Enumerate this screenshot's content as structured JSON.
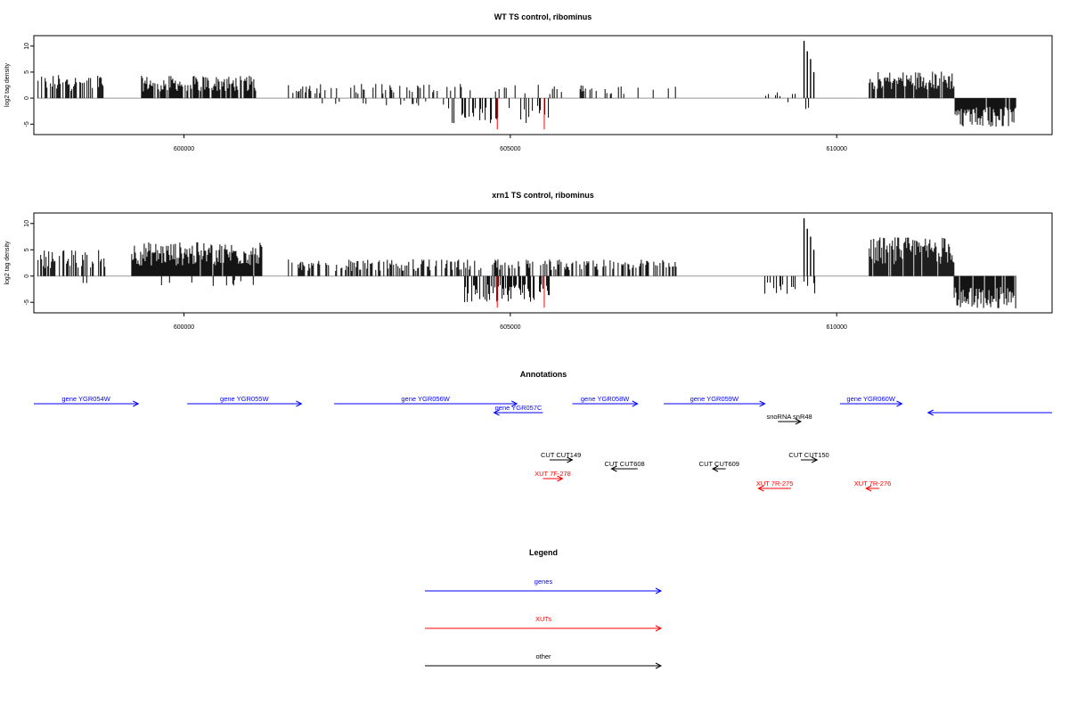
{
  "chart_data": [
    {
      "type": "bar",
      "title": "WT TS control, ribominus",
      "ylabel": "log2 tag density",
      "xlim": [
        597700,
        613300
      ],
      "ylim": [
        -7,
        12
      ],
      "x_ticks": [
        "600000",
        "605000",
        "610000"
      ],
      "y_ticks": [
        "-5",
        "0",
        "5",
        "10"
      ],
      "series": [
        {
          "strand": "plus",
          "color": "#000000",
          "segments": [
            {
              "x": [
                597750,
                598800
              ],
              "amp": 4.5,
              "density": 0.55
            },
            {
              "x": [
                599350,
                601100
              ],
              "amp": 4.3,
              "density": 0.8
            },
            {
              "x": [
                601600,
                604400
              ],
              "amp": 2.8,
              "density": 0.25
            },
            {
              "x": [
                604500,
                607600
              ],
              "amp": 2.6,
              "density": 0.12
            },
            {
              "x": [
                608900,
                609500
              ],
              "amp": 1.2,
              "density": 0.12
            },
            {
              "x": [
                610500,
                611800
              ],
              "amp": 5.2,
              "density": 0.9
            }
          ],
          "peaks": [
            [
              609500,
              11
            ],
            [
              609550,
              9
            ],
            [
              609600,
              7.5
            ],
            [
              609650,
              5
            ]
          ]
        },
        {
          "strand": "minus",
          "color": "#000000",
          "segments": [
            {
              "x": [
                601600,
                604000
              ],
              "amp": 1.5,
              "density": 0.04
            },
            {
              "x": [
                604000,
                605600
              ],
              "amp": 4.8,
              "density": 0.3
            },
            {
              "x": [
                608900,
                609700
              ],
              "amp": 2.5,
              "density": 0.12
            },
            {
              "x": [
                611800,
                612750
              ],
              "amp": 5.5,
              "density": 0.9
            }
          ]
        },
        {
          "strand": "minus",
          "color": "#ff0000",
          "bars": [
            [
              604800,
              -6
            ],
            [
              605520,
              -6
            ]
          ]
        }
      ]
    },
    {
      "type": "bar",
      "title": "xrn1 TS control, ribominus",
      "ylabel": "log2 tag density",
      "xlim": [
        597700,
        613300
      ],
      "ylim": [
        -7,
        12
      ],
      "x_ticks": [
        "600000",
        "605000",
        "610000"
      ],
      "y_ticks": [
        "-5",
        "0",
        "5",
        "10"
      ],
      "series": [
        {
          "strand": "plus",
          "color": "#000000",
          "segments": [
            {
              "x": [
                597750,
                598800
              ],
              "amp": 5.0,
              "density": 0.55
            },
            {
              "x": [
                599200,
                601200
              ],
              "amp": 6.5,
              "density": 0.95
            },
            {
              "x": [
                601600,
                604600
              ],
              "amp": 3.2,
              "density": 0.5
            },
            {
              "x": [
                604700,
                607600
              ],
              "amp": 3.2,
              "density": 0.45
            },
            {
              "x": [
                610500,
                611800
              ],
              "amp": 7.5,
              "density": 0.95
            }
          ],
          "peaks": [
            [
              609500,
              11
            ],
            [
              609550,
              9
            ],
            [
              609600,
              7.5
            ],
            [
              609650,
              5
            ]
          ]
        },
        {
          "strand": "minus",
          "color": "#000000",
          "segments": [
            {
              "x": [
                598400,
                601300
              ],
              "amp": 2.0,
              "density": 0.05
            },
            {
              "x": [
                604300,
                605600
              ],
              "amp": 5.0,
              "density": 0.6
            },
            {
              "x": [
                608900,
                609700
              ],
              "amp": 3.5,
              "density": 0.3
            },
            {
              "x": [
                611800,
                612750
              ],
              "amp": 6.2,
              "density": 0.95
            }
          ]
        },
        {
          "strand": "minus",
          "color": "#ff0000",
          "bars": [
            [
              604800,
              -6
            ],
            [
              605520,
              -6
            ]
          ]
        }
      ]
    }
  ],
  "annotations": {
    "title": "Annotations",
    "items": [
      {
        "label": "gene YGR054W",
        "color": "#0000ff",
        "dir": "right",
        "range": [
          597700,
          599300
        ]
      },
      {
        "label": "gene YGR055W",
        "color": "#0000ff",
        "dir": "right",
        "range": [
          600050,
          601800
        ]
      },
      {
        "label": "gene YGR056W",
        "color": "#0000ff",
        "dir": "right",
        "range": [
          602300,
          605100
        ]
      },
      {
        "label": "gene YGR057C",
        "color": "#0000ff",
        "dir": "left",
        "range": [
          604750,
          605500
        ]
      },
      {
        "label": "gene YGR058W",
        "color": "#0000ff",
        "dir": "right",
        "range": [
          605950,
          606950
        ]
      },
      {
        "label": "gene YGR059W",
        "color": "#0000ff",
        "dir": "right",
        "range": [
          607350,
          608900
        ]
      },
      {
        "label": "snoRNA snR48",
        "color": "#000000",
        "dir": "right",
        "range": [
          609100,
          609450
        ]
      },
      {
        "label": "gene YGR060W",
        "color": "#0000ff",
        "dir": "right",
        "range": [
          610050,
          611000
        ]
      },
      {
        "label": "",
        "color": "#0000ff",
        "dir": "left",
        "range": [
          611400,
          613300
        ]
      },
      {
        "label": "CUT CUT149",
        "color": "#000000",
        "dir": "right",
        "range": [
          605600,
          605950
        ]
      },
      {
        "label": "CUT CUT608",
        "color": "#000000",
        "dir": "left",
        "range": [
          606550,
          606950
        ]
      },
      {
        "label": "CUT CUT150",
        "color": "#000000",
        "dir": "right",
        "range": [
          609450,
          609700
        ]
      },
      {
        "label": "CUT CUT609",
        "color": "#000000",
        "dir": "left",
        "range": [
          608100,
          608300
        ]
      },
      {
        "label": "XUT 7F-278",
        "color": "#ff0000",
        "dir": "right",
        "range": [
          605500,
          605800
        ]
      },
      {
        "label": "XUT 7R-275",
        "color": "#ff0000",
        "dir": "left",
        "range": [
          608800,
          609300
        ]
      },
      {
        "label": "XUT 7R-276",
        "color": "#ff0000",
        "dir": "left",
        "range": [
          610450,
          610650
        ]
      }
    ]
  },
  "legend": {
    "title": "Legend",
    "entries": [
      {
        "label": "genes",
        "color": "#0000ff"
      },
      {
        "label": "XUTs",
        "color": "#ff0000"
      },
      {
        "label": "other",
        "color": "#000000"
      }
    ]
  }
}
